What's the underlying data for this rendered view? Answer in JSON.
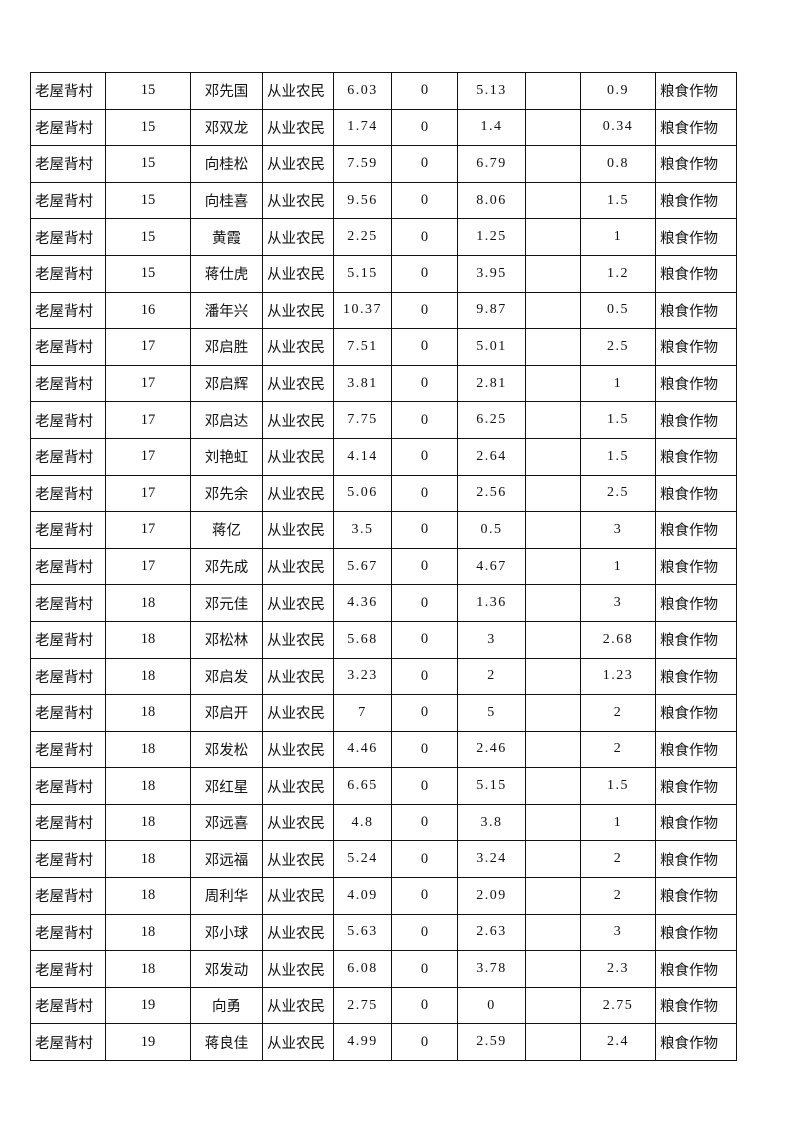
{
  "table": {
    "rows": [
      [
        "老屋背村",
        "15",
        "邓先国",
        "从业农民",
        "6.03",
        "0",
        "5.13",
        "",
        "0.9",
        "粮食作物"
      ],
      [
        "老屋背村",
        "15",
        "邓双龙",
        "从业农民",
        "1.74",
        "0",
        "1.4",
        "",
        "0.34",
        "粮食作物"
      ],
      [
        "老屋背村",
        "15",
        "向桂松",
        "从业农民",
        "7.59",
        "0",
        "6.79",
        "",
        "0.8",
        "粮食作物"
      ],
      [
        "老屋背村",
        "15",
        "向桂喜",
        "从业农民",
        "9.56",
        "0",
        "8.06",
        "",
        "1.5",
        "粮食作物"
      ],
      [
        "老屋背村",
        "15",
        "黄霞",
        "从业农民",
        "2.25",
        "0",
        "1.25",
        "",
        "1",
        "粮食作物"
      ],
      [
        "老屋背村",
        "15",
        "蒋仕虎",
        "从业农民",
        "5.15",
        "0",
        "3.95",
        "",
        "1.2",
        "粮食作物"
      ],
      [
        "老屋背村",
        "16",
        "潘年兴",
        "从业农民",
        "10.37",
        "0",
        "9.87",
        "",
        "0.5",
        "粮食作物"
      ],
      [
        "老屋背村",
        "17",
        "邓启胜",
        "从业农民",
        "7.51",
        "0",
        "5.01",
        "",
        "2.5",
        "粮食作物"
      ],
      [
        "老屋背村",
        "17",
        "邓启辉",
        "从业农民",
        "3.81",
        "0",
        "2.81",
        "",
        "1",
        "粮食作物"
      ],
      [
        "老屋背村",
        "17",
        "邓启达",
        "从业农民",
        "7.75",
        "0",
        "6.25",
        "",
        "1.5",
        "粮食作物"
      ],
      [
        "老屋背村",
        "17",
        "刘艳虹",
        "从业农民",
        "4.14",
        "0",
        "2.64",
        "",
        "1.5",
        "粮食作物"
      ],
      [
        "老屋背村",
        "17",
        "邓先余",
        "从业农民",
        "5.06",
        "0",
        "2.56",
        "",
        "2.5",
        "粮食作物"
      ],
      [
        "老屋背村",
        "17",
        "蒋亿",
        "从业农民",
        "3.5",
        "0",
        "0.5",
        "",
        "3",
        "粮食作物"
      ],
      [
        "老屋背村",
        "17",
        "邓先成",
        "从业农民",
        "5.67",
        "0",
        "4.67",
        "",
        "1",
        "粮食作物"
      ],
      [
        "老屋背村",
        "18",
        "邓元佳",
        "从业农民",
        "4.36",
        "0",
        "1.36",
        "",
        "3",
        "粮食作物"
      ],
      [
        "老屋背村",
        "18",
        "邓松林",
        "从业农民",
        "5.68",
        "0",
        "3",
        "",
        "2.68",
        "粮食作物"
      ],
      [
        "老屋背村",
        "18",
        "邓启发",
        "从业农民",
        "3.23",
        "0",
        "2",
        "",
        "1.23",
        "粮食作物"
      ],
      [
        "老屋背村",
        "18",
        "邓启开",
        "从业农民",
        "7",
        "0",
        "5",
        "",
        "2",
        "粮食作物"
      ],
      [
        "老屋背村",
        "18",
        "邓发松",
        "从业农民",
        "4.46",
        "0",
        "2.46",
        "",
        "2",
        "粮食作物"
      ],
      [
        "老屋背村",
        "18",
        "邓红星",
        "从业农民",
        "6.65",
        "0",
        "5.15",
        "",
        "1.5",
        "粮食作物"
      ],
      [
        "老屋背村",
        "18",
        "邓远喜",
        "从业农民",
        "4.8",
        "0",
        "3.8",
        "",
        "1",
        "粮食作物"
      ],
      [
        "老屋背村",
        "18",
        "邓远福",
        "从业农民",
        "5.24",
        "0",
        "3.24",
        "",
        "2",
        "粮食作物"
      ],
      [
        "老屋背村",
        "18",
        "周利华",
        "从业农民",
        "4.09",
        "0",
        "2.09",
        "",
        "2",
        "粮食作物"
      ],
      [
        "老屋背村",
        "18",
        "邓小球",
        "从业农民",
        "5.63",
        "0",
        "2.63",
        "",
        "3",
        "粮食作物"
      ],
      [
        "老屋背村",
        "18",
        "邓发动",
        "从业农民",
        "6.08",
        "0",
        "3.78",
        "",
        "2.3",
        "粮食作物"
      ],
      [
        "老屋背村",
        "19",
        "向勇",
        "从业农民",
        "2.75",
        "0",
        "0",
        "",
        "2.75",
        "粮食作物"
      ],
      [
        "老屋背村",
        "19",
        "蒋良佳",
        "从业农民",
        "4.99",
        "0",
        "2.59",
        "",
        "2.4",
        "粮食作物"
      ]
    ]
  }
}
